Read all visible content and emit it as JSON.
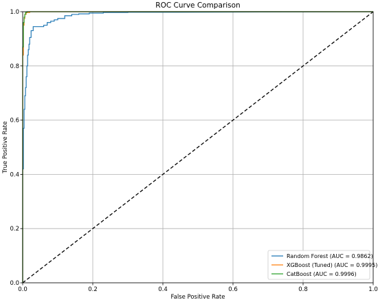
{
  "chart_data": {
    "type": "line",
    "title": "ROC Curve Comparison",
    "xlabel": "False Positive Rate",
    "ylabel": "True Positive Rate",
    "xlim": [
      0.0,
      1.0
    ],
    "ylim": [
      0.0,
      1.0
    ],
    "xticks": [
      "0.0",
      "0.2",
      "0.4",
      "0.6",
      "0.8",
      "1.0"
    ],
    "yticks": [
      "0.0",
      "0.2",
      "0.4",
      "0.6",
      "0.8",
      "1.0"
    ],
    "grid": true,
    "legend_position": "lower-right",
    "series": [
      {
        "name": "Random Forest (AUC = 0.9862)",
        "color": "#1f77b4",
        "x": [
          0.0,
          0.0,
          0.002,
          0.002,
          0.004,
          0.004,
          0.006,
          0.006,
          0.008,
          0.008,
          0.01,
          0.01,
          0.012,
          0.012,
          0.014,
          0.014,
          0.016,
          0.016,
          0.018,
          0.018,
          0.02,
          0.02,
          0.024,
          0.024,
          0.03,
          0.03,
          0.06,
          0.06,
          0.07,
          0.07,
          0.08,
          0.08,
          0.09,
          0.09,
          0.1,
          0.1,
          0.12,
          0.12,
          0.14,
          0.14,
          0.16,
          0.16,
          0.19,
          0.19,
          0.23,
          0.23,
          0.3,
          0.3,
          0.44,
          1.0
        ],
        "y": [
          0.0,
          0.42,
          0.42,
          0.57,
          0.57,
          0.64,
          0.64,
          0.69,
          0.69,
          0.72,
          0.72,
          0.76,
          0.76,
          0.8,
          0.8,
          0.84,
          0.84,
          0.86,
          0.86,
          0.88,
          0.88,
          0.905,
          0.905,
          0.93,
          0.93,
          0.945,
          0.945,
          0.95,
          0.95,
          0.96,
          0.96,
          0.965,
          0.965,
          0.97,
          0.97,
          0.975,
          0.975,
          0.985,
          0.985,
          0.99,
          0.99,
          0.992,
          0.992,
          0.995,
          0.995,
          0.997,
          0.997,
          0.998,
          0.998,
          1.0
        ]
      },
      {
        "name": "XGBoost (Tuned) (AUC = 0.9995)",
        "color": "#ff7f0e",
        "x": [
          0.0,
          0.0,
          0.002,
          0.002,
          0.004,
          0.004,
          0.006,
          0.006,
          0.01,
          0.01,
          0.02,
          0.02,
          1.0
        ],
        "y": [
          0.0,
          0.84,
          0.84,
          0.95,
          0.95,
          0.975,
          0.975,
          0.99,
          0.99,
          0.997,
          0.997,
          1.0,
          1.0
        ]
      },
      {
        "name": "CatBoost (AUC = 0.9996)",
        "color": "#2ca02c",
        "x": [
          0.0,
          0.0,
          0.002,
          0.002,
          0.004,
          0.004,
          0.006,
          0.006,
          0.008,
          0.008,
          0.012,
          0.012,
          1.0
        ],
        "y": [
          0.0,
          0.87,
          0.87,
          0.96,
          0.96,
          0.98,
          0.98,
          0.99,
          0.99,
          0.997,
          0.997,
          1.0,
          1.0
        ]
      },
      {
        "name": "",
        "color": "#000000",
        "dashed": true,
        "x": [
          0.0,
          1.0
        ],
        "y": [
          0.0,
          1.0
        ]
      }
    ]
  }
}
